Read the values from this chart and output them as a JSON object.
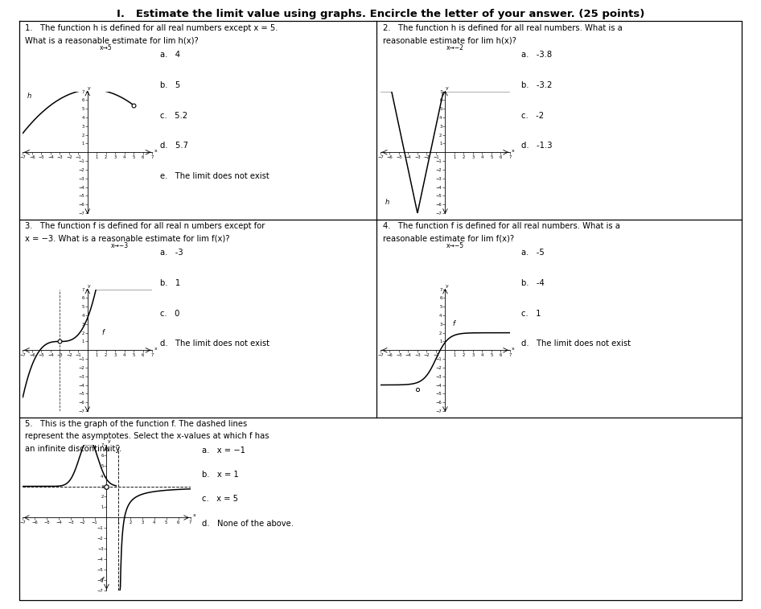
{
  "title": "I.   Estimate the limit value using graphs. Encircle the letter of your answer. (25 points)",
  "bg_color": "#ffffff",
  "q1_line1": "1.   The function h is defined for all real numbers except x = 5.",
  "q1_line2": "What is a reasonable estimate for lim h(x)?",
  "q1_lim_sub": "x→5",
  "q1_choices": [
    "a.   4",
    "b.   5",
    "c.   5.2",
    "d.   5.7",
    "e.   The limit does not exist"
  ],
  "q1_h_label": "h",
  "q2_line1": "2.   The function h is defined for all real numbers. What is a",
  "q2_line2": "reasonable estimate for lim h(x)?",
  "q2_lim_sub": "x→−2",
  "q2_choices": [
    "a.   -3.8",
    "b.   -3.2",
    "c.   -2",
    "d.   -1.3"
  ],
  "q2_h_label": "h",
  "q3_line1": "3.   The function f is defined for all real n umbers except for",
  "q3_line2": "x = −3. What is a reasonable estimate for lim f(x)?",
  "q3_lim_sub": "x→−3",
  "q3_choices": [
    "a.   -3",
    "b.   1",
    "c.   0",
    "d.   The limit does not exist"
  ],
  "q3_f_label": "f",
  "q4_line1": "4.   The function f is defined for all real numbers. What is a",
  "q4_line2": "reasonable estimate for lim f(x)?",
  "q4_lim_sub": "x→−5",
  "q4_choices": [
    "a.   -5",
    "b.   -4",
    "c.   1",
    "d.   The limit does not exist"
  ],
  "q4_f_label": "f",
  "q5_line1": "5.   This is the graph of the function f. The dashed lines",
  "q5_line2": "represent the asymptotes. Select the x-values at which f has",
  "q5_line3": "an infinite discontinuity.",
  "q5_choices": [
    "a.   x = −1",
    "b.   x = 1",
    "c.   x = 5",
    "d.   None of the above."
  ],
  "q5_f_label": "f"
}
